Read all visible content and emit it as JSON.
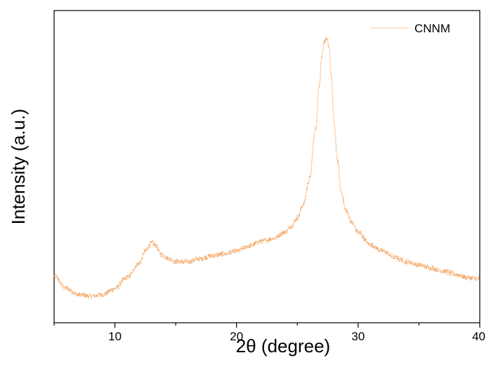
{
  "chart_data": {
    "type": "line",
    "xlabel": "2θ (degree)",
    "ylabel": "Intensity (a.u.)",
    "xlim": [
      5,
      40
    ],
    "ylim": [
      0,
      100
    ],
    "xticks": [
      10,
      20,
      30,
      40
    ],
    "y_tick_labels_shown": false,
    "grid": false,
    "legend": "top-right",
    "series": [
      {
        "name": "CNNM",
        "color": "#f4a460",
        "style": "dotted",
        "x": [
          5,
          6,
          7,
          8,
          9,
          10,
          11,
          12,
          12.5,
          13,
          13.3,
          13.8,
          14.5,
          15,
          16,
          17,
          18,
          19,
          20,
          21,
          22,
          23,
          24,
          24.5,
          25,
          25.5,
          26,
          26.5,
          26.8,
          27.0,
          27.2,
          27.4,
          27.6,
          27.8,
          28.0,
          28.3,
          28.6,
          29,
          29.5,
          30,
          31,
          32,
          33,
          34,
          35,
          36,
          37,
          38,
          39,
          40
        ],
        "y": [
          15,
          11,
          9,
          8.5,
          9,
          11,
          14.5,
          19,
          23,
          25.5,
          25,
          22,
          20.5,
          19.5,
          19.5,
          20.5,
          21.5,
          22,
          23,
          24.5,
          26,
          27,
          29,
          31,
          33.5,
          38,
          46,
          62,
          76,
          85,
          90,
          91,
          88,
          79,
          65,
          52,
          42,
          36,
          32,
          29,
          25,
          23,
          21,
          19.5,
          18.5,
          17.5,
          16.5,
          15.5,
          14.5,
          14
        ]
      }
    ]
  }
}
